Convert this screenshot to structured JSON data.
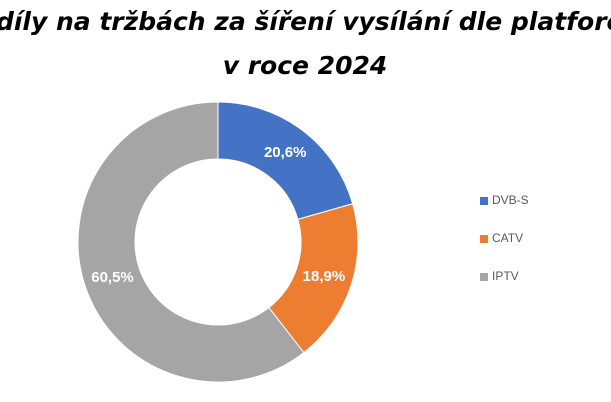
{
  "chart_data": {
    "type": "donut",
    "title": [
      "Podíly na tržbách za šíření vysílání dle platforem",
      "v roce 2024"
    ],
    "categories": [
      "DVB-S",
      "CATV",
      "IPTV"
    ],
    "values": [
      20.6,
      18.9,
      60.5
    ],
    "value_labels": [
      "20,6%",
      "18,9%",
      "60,5%"
    ],
    "colors": [
      "#4472c4",
      "#ed7d31",
      "#a5a5a5"
    ],
    "legend": "right"
  }
}
